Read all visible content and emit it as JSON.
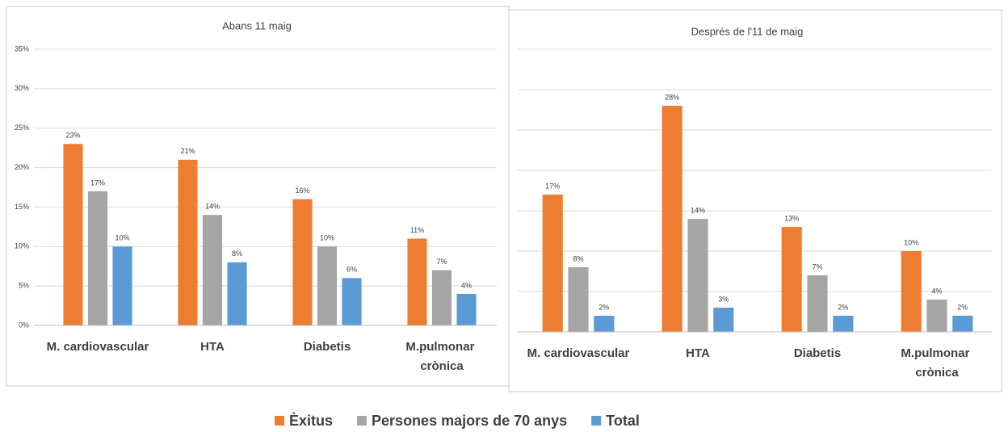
{
  "chart_data": [
    {
      "type": "bar",
      "title": "Abans 11 maig",
      "categories": [
        "M. cardiovascular",
        "HTA",
        "Diabetis",
        "M.pulmonar crònica"
      ],
      "series": [
        {
          "name": "Èxitus",
          "color": "#ed7d31",
          "values": [
            23,
            21,
            16,
            11
          ],
          "value_labels": [
            "23%",
            "21%",
            "16%",
            "11%"
          ]
        },
        {
          "name": "Persones majors de 70 anys",
          "color": "#a5a5a5",
          "values": [
            17,
            14,
            10,
            7
          ],
          "value_labels": [
            "17%",
            "14%",
            "10%",
            "7%"
          ]
        },
        {
          "name": "Total",
          "color": "#5b9bd5",
          "values": [
            10,
            8,
            6,
            4
          ],
          "value_labels": [
            "10%",
            "8%",
            "6%",
            "4%"
          ]
        }
      ],
      "ylim": [
        0,
        35
      ],
      "yticks": [
        {
          "value": 0,
          "label": "0%"
        },
        {
          "value": 5,
          "label": "5%"
        },
        {
          "value": 10,
          "label": "10%"
        },
        {
          "value": 15,
          "label": "15%"
        },
        {
          "value": 20,
          "label": "20%"
        },
        {
          "value": 25,
          "label": "25%"
        },
        {
          "value": 30,
          "label": "30%"
        },
        {
          "value": 35,
          "label": "35%"
        }
      ],
      "grid": true
    },
    {
      "type": "bar",
      "title": "Després de l'11 de maig",
      "categories": [
        "M. cardiovascular",
        "HTA",
        "Diabetis",
        "M.pulmonar crònica"
      ],
      "series": [
        {
          "values": [
            17,
            28,
            13,
            10
          ],
          "value_labels": [
            "17%",
            "28%",
            "13%",
            "10%"
          ]
        },
        {
          "values": [
            8,
            14,
            7,
            4
          ],
          "value_labels": [
            "8%",
            "14%",
            "7%",
            "4%"
          ]
        },
        {
          "values": [
            2,
            3,
            2,
            2
          ],
          "value_labels": [
            "2%",
            "3%",
            "2%",
            "2%"
          ]
        }
      ],
      "ylim": [
        0,
        35
      ],
      "yticks": [
        0,
        5,
        10,
        15,
        20,
        25,
        30,
        35
      ],
      "grid": true
    }
  ]
}
